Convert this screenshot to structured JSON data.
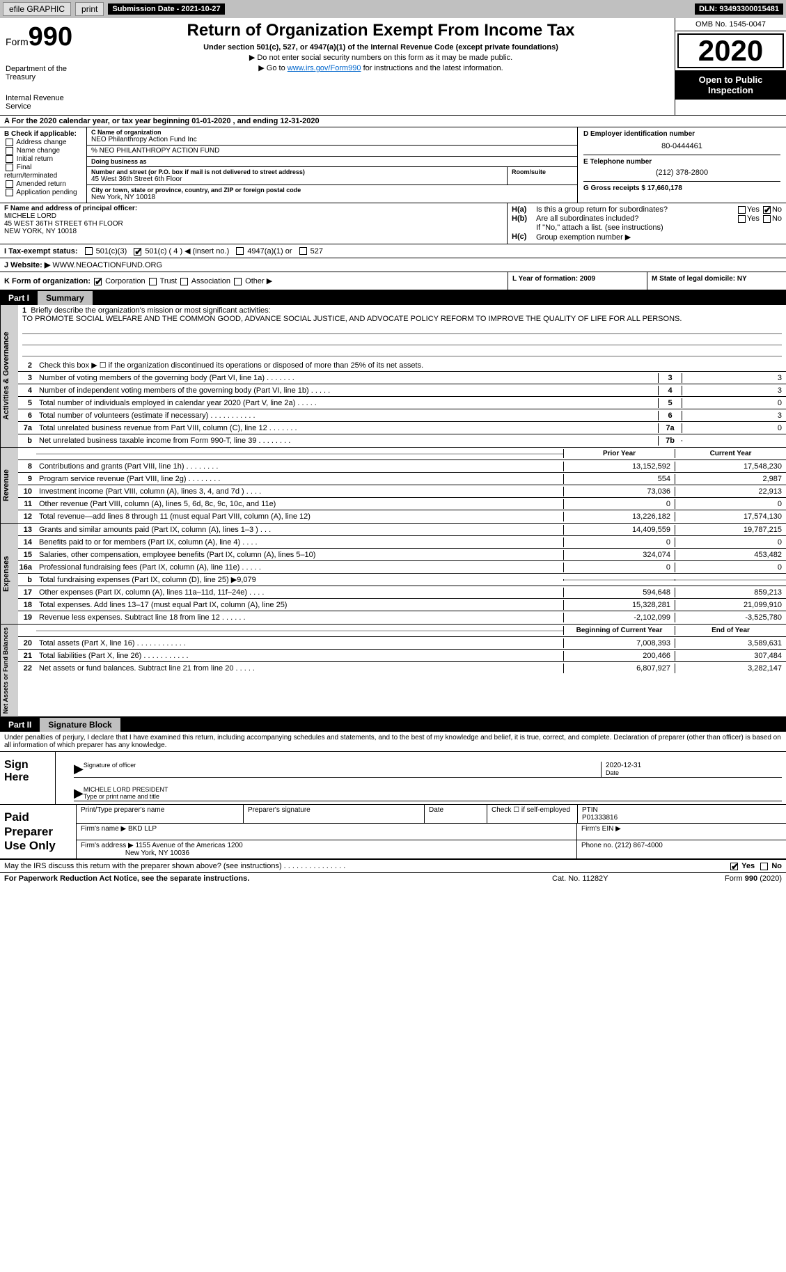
{
  "topbar": {
    "efile": "efile GRAPHIC",
    "print": "print",
    "submission_label": "Submission Date - 2021-10-27",
    "dln": "DLN: 93493300015481"
  },
  "header": {
    "form_prefix": "Form",
    "form_num": "990",
    "dept": "Department of the Treasury",
    "irs": "Internal Revenue Service",
    "title": "Return of Organization Exempt From Income Tax",
    "subtitle": "Under section 501(c), 527, or 4947(a)(1) of the Internal Revenue Code (except private foundations)",
    "note1": "▶ Do not enter social security numbers on this form as it may be made public.",
    "note2_pre": "▶ Go to ",
    "note2_link": "www.irs.gov/Form990",
    "note2_post": " for instructions and the latest information.",
    "omb": "OMB No. 1545-0047",
    "year": "2020",
    "inspect": "Open to Public Inspection"
  },
  "row_a": "A For the 2020 calendar year, or tax year beginning 01-01-2020    , and ending 12-31-2020",
  "section_b": {
    "label": "B Check if applicable:",
    "items": [
      "Address change",
      "Name change",
      "Initial return",
      "Final return/terminated",
      "Amended return",
      "Application pending"
    ]
  },
  "section_c": {
    "name_label": "C Name of organization",
    "name": "NEO Philanthropy Action Fund Inc",
    "care_of": "% NEO PHILANTHROPY ACTION FUND",
    "dba_label": "Doing business as",
    "addr_label": "Number and street (or P.O. box if mail is not delivered to street address)",
    "addr": "45 West 36th Street 6th Floor",
    "room_label": "Room/suite",
    "city_label": "City or town, state or province, country, and ZIP or foreign postal code",
    "city": "New York, NY   10018"
  },
  "section_d": {
    "label": "D Employer identification number",
    "ein": "80-0444461",
    "e_label": "E Telephone number",
    "phone": "(212) 378-2800",
    "g_label": "G Gross receipts $ 17,660,178"
  },
  "section_f": {
    "label": "F  Name and address of principal officer:",
    "name": "MICHELE LORD",
    "addr1": "45 WEST 36TH STREET 6TH FLOOR",
    "addr2": "NEW YORK, NY  10018"
  },
  "section_h": {
    "ha_lbl": "H(a)",
    "ha_txt": "Is this a group return for subordinates?",
    "ha_yes": "Yes",
    "ha_no": "No",
    "hb_lbl": "H(b)",
    "hb_txt": "Are all subordinates included?",
    "hb_note": "If \"No,\" attach a list. (see instructions)",
    "hc_lbl": "H(c)",
    "hc_txt": "Group exemption number ▶"
  },
  "row_i": {
    "label": "I   Tax-exempt status:",
    "opt1": "501(c)(3)",
    "opt2": "501(c) ( 4 ) ◀ (insert no.)",
    "opt3": "4947(a)(1) or",
    "opt4": "527"
  },
  "row_j": {
    "label": "J   Website: ▶",
    "val": "WWW.NEOACTIONFUND.ORG"
  },
  "row_k": {
    "k_label": "K Form of organization:",
    "opts": [
      "Corporation",
      "Trust",
      "Association",
      "Other ▶"
    ],
    "l_label": "L Year of formation: 2009",
    "m_label": "M State of legal domicile: NY"
  },
  "part1": {
    "label": "Part I",
    "title": "Summary"
  },
  "governance": {
    "side": "Activities & Governance",
    "q1": "Briefly describe the organization's mission or most significant activities:",
    "mission": "TO PROMOTE SOCIAL WELFARE AND THE COMMON GOOD, ADVANCE SOCIAL JUSTICE, AND ADVOCATE POLICY REFORM TO IMPROVE THE QUALITY OF LIFE FOR ALL PERSONS.",
    "q2": "Check this box ▶ ☐  if the organization discontinued its operations or disposed of more than 25% of its net assets.",
    "rows": [
      {
        "n": "3",
        "t": "Number of voting members of the governing body (Part VI, line 1a)   .    .    .    .    .    .    .",
        "b": "3",
        "v": "3"
      },
      {
        "n": "4",
        "t": "Number of independent voting members of the governing body (Part VI, line 1b)   .    .    .    .    .",
        "b": "4",
        "v": "3"
      },
      {
        "n": "5",
        "t": "Total number of individuals employed in calendar year 2020 (Part V, line 2a)   .    .    .    .    .",
        "b": "5",
        "v": "0"
      },
      {
        "n": "6",
        "t": "Total number of volunteers (estimate if necessary)   .    .    .    .    .    .    .    .    .    .    .",
        "b": "6",
        "v": "3"
      },
      {
        "n": "7a",
        "t": "Total unrelated business revenue from Part VIII, column (C), line 12   .    .    .    .    .    .    .",
        "b": "7a",
        "v": "0"
      },
      {
        "n": "b",
        "t": "Net unrelated business taxable income from Form 990-T, line 39   .    .    .    .    .    .    .    .",
        "b": "7b",
        "v": ""
      }
    ]
  },
  "revenue": {
    "side": "Revenue",
    "head_prior": "Prior Year",
    "head_curr": "Current Year",
    "rows": [
      {
        "n": "8",
        "t": "Contributions and grants (Part VIII, line 1h)   .    .    .    .    .    .    .    .",
        "p": "13,152,592",
        "c": "17,548,230"
      },
      {
        "n": "9",
        "t": "Program service revenue (Part VIII, line 2g)   .    .    .    .    .    .    .    .",
        "p": "554",
        "c": "2,987"
      },
      {
        "n": "10",
        "t": "Investment income (Part VIII, column (A), lines 3, 4, and 7d )   .    .    .    .",
        "p": "73,036",
        "c": "22,913"
      },
      {
        "n": "11",
        "t": "Other revenue (Part VIII, column (A), lines 5, 6d, 8c, 9c, 10c, and 11e)",
        "p": "0",
        "c": "0"
      },
      {
        "n": "12",
        "t": "Total revenue—add lines 8 through 11 (must equal Part VIII, column (A), line 12)",
        "p": "13,226,182",
        "c": "17,574,130"
      }
    ]
  },
  "expenses": {
    "side": "Expenses",
    "rows": [
      {
        "n": "13",
        "t": "Grants and similar amounts paid (Part IX, column (A), lines 1–3 )   .    .    .",
        "p": "14,409,559",
        "c": "19,787,215"
      },
      {
        "n": "14",
        "t": "Benefits paid to or for members (Part IX, column (A), line 4)   .    .    .    .",
        "p": "0",
        "c": "0"
      },
      {
        "n": "15",
        "t": "Salaries, other compensation, employee benefits (Part IX, column (A), lines 5–10)",
        "p": "324,074",
        "c": "453,482"
      },
      {
        "n": "16a",
        "t": "Professional fundraising fees (Part IX, column (A), line 11e)   .    .    .    .    .",
        "p": "0",
        "c": "0"
      },
      {
        "n": "b",
        "t": "Total fundraising expenses (Part IX, column (D), line 25) ▶9,079",
        "p": "",
        "c": "",
        "gray": true
      },
      {
        "n": "17",
        "t": "Other expenses (Part IX, column (A), lines 11a–11d, 11f–24e)   .    .    .    .",
        "p": "594,648",
        "c": "859,213"
      },
      {
        "n": "18",
        "t": "Total expenses. Add lines 13–17 (must equal Part IX, column (A), line 25)",
        "p": "15,328,281",
        "c": "21,099,910"
      },
      {
        "n": "19",
        "t": "Revenue less expenses. Subtract line 18 from line 12   .    .    .    .    .    .",
        "p": "-2,102,099",
        "c": "-3,525,780"
      }
    ]
  },
  "netassets": {
    "side": "Net Assets or Fund Balances",
    "head_prior": "Beginning of Current Year",
    "head_curr": "End of Year",
    "rows": [
      {
        "n": "20",
        "t": "Total assets (Part X, line 16)   .    .    .    .    .    .    .    .    .    .    .    .",
        "p": "7,008,393",
        "c": "3,589,631"
      },
      {
        "n": "21",
        "t": "Total liabilities (Part X, line 26)   .    .    .    .    .    .    .    .    .    .    .",
        "p": "200,466",
        "c": "307,484"
      },
      {
        "n": "22",
        "t": "Net assets or fund balances. Subtract line 21 from line 20   .    .    .    .    .",
        "p": "6,807,927",
        "c": "3,282,147"
      }
    ]
  },
  "part2": {
    "label": "Part II",
    "title": "Signature Block"
  },
  "sig_note": "Under penalties of perjury, I declare that I have examined this return, including accompanying schedules and statements, and to the best of my knowledge and belief, it is true, correct, and complete. Declaration of preparer (other than officer) is based on all information of which preparer has any knowledge.",
  "sign": {
    "label": "Sign Here",
    "sig_of_officer": "Signature of officer",
    "date": "Date",
    "date_val": "2020-12-31",
    "name": "MICHELE LORD  PRESIDENT",
    "name_label": "Type or print name and title"
  },
  "paid": {
    "label": "Paid Preparer Use Only",
    "h1": "Print/Type preparer's name",
    "h2": "Preparer's signature",
    "h3": "Date",
    "h4_a": "Check ☐ if self-employed",
    "h4_b": "PTIN",
    "ptin": "P01333816",
    "firm_name_lbl": "Firm's name    ▶",
    "firm_name": "BKD LLP",
    "firm_ein_lbl": "Firm's EIN ▶",
    "firm_addr_lbl": "Firm's address ▶",
    "firm_addr1": "1155 Avenue of the Americas 1200",
    "firm_addr2": "New York, NY  10036",
    "phone_lbl": "Phone no. (212) 867-4000"
  },
  "discuss": {
    "txt": "May the IRS discuss this return with the preparer shown above? (see instructions)   .    .    .    .    .    .    .    .    .    .    .    .    .    .    .",
    "yes": "Yes",
    "no": "No"
  },
  "footer": {
    "left": "For Paperwork Reduction Act Notice, see the separate instructions.",
    "mid": "Cat. No. 11282Y",
    "right": "Form 990 (2020)"
  }
}
